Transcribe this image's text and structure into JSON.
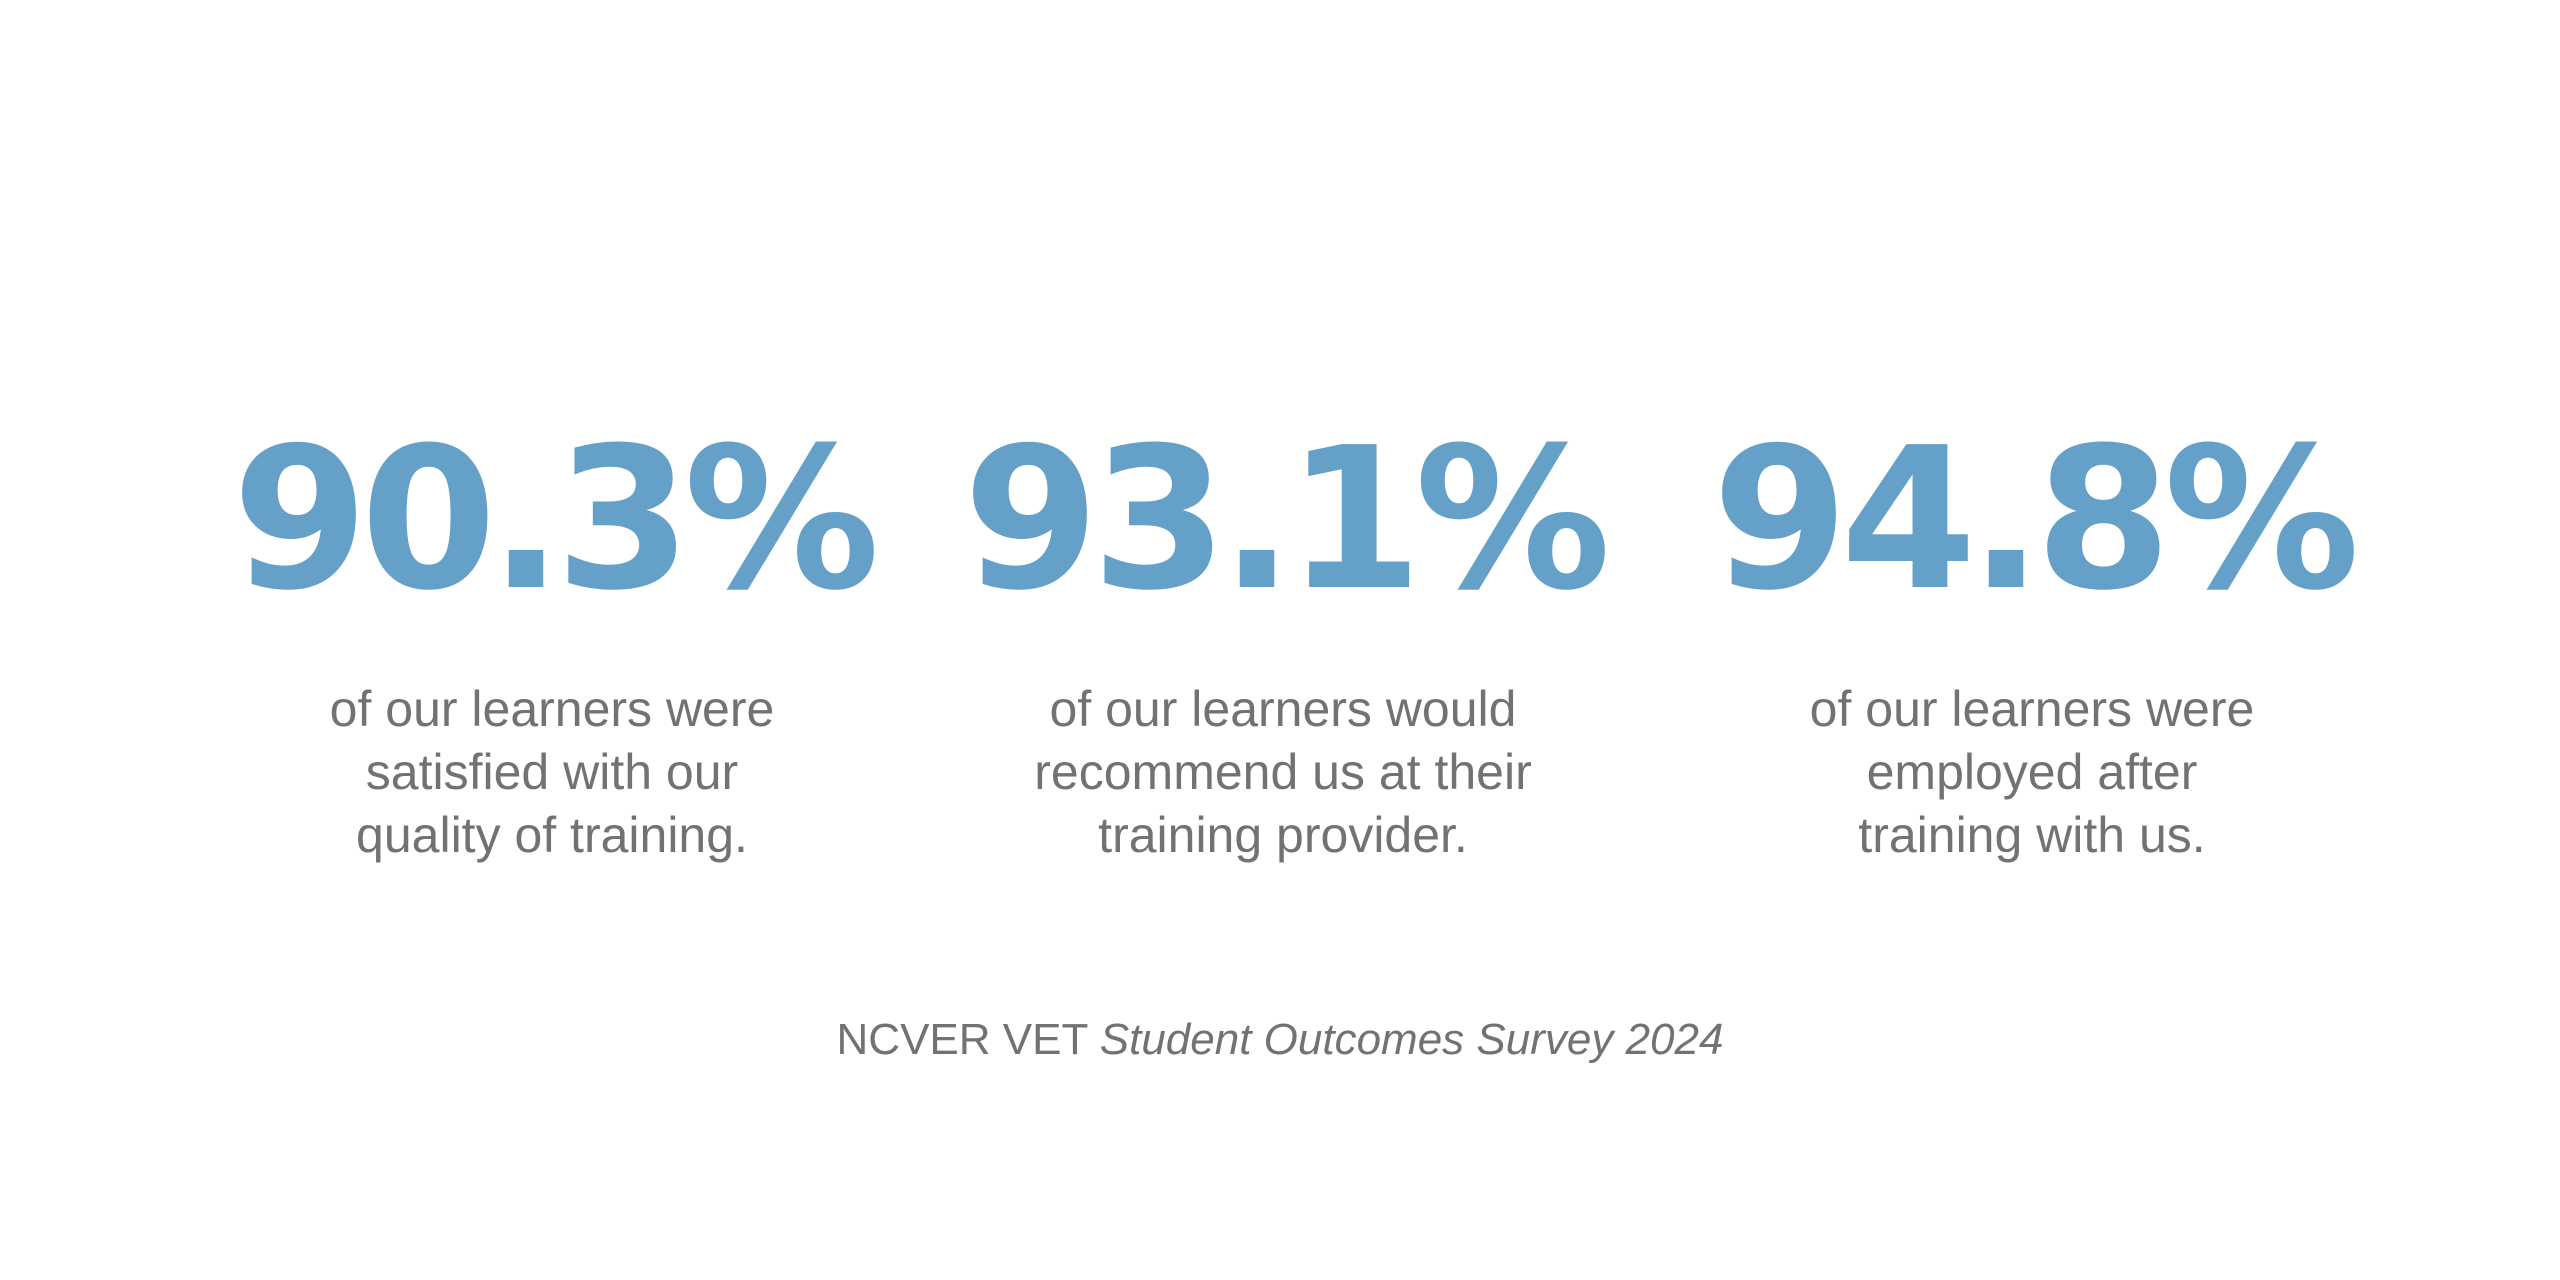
{
  "colors": {
    "accent": "#64a0c8",
    "text": "#727272",
    "background": "#ffffff"
  },
  "stats": [
    {
      "value": "90.3%",
      "caption": "of our learners were\nsatisfied with our\nquality of training."
    },
    {
      "value": "93.1%",
      "caption": "of our learners would\nrecommend us at their\ntraining provider."
    },
    {
      "value": "94.8%",
      "caption": "of our learners were\nemployed after\ntraining with us."
    }
  ],
  "source": {
    "prefix": "NCVER VET ",
    "title": "Student Outcomes Survey 2024"
  }
}
